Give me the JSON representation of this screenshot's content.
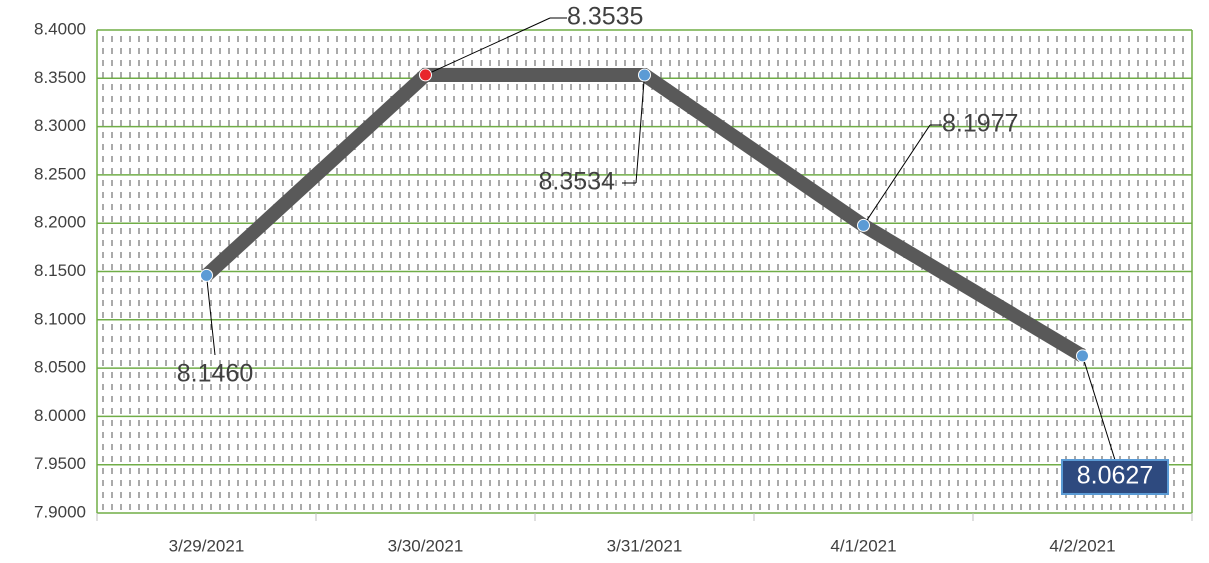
{
  "chart_data": {
    "type": "line",
    "categories": [
      "3/29/2021",
      "3/30/2021",
      "3/31/2021",
      "4/1/2021",
      "4/2/2021"
    ],
    "values": [
      8.146,
      8.3535,
      8.3534,
      8.1977,
      8.0627
    ],
    "value_labels": [
      "8.1460",
      "8.3535",
      "8.3534",
      "8.1977",
      "8.0627"
    ],
    "color": "#595959",
    "marker_colors": [
      "#5b9bd5",
      "#e8262b",
      "#5b9bd5",
      "#5b9bd5",
      "#5b9bd5"
    ],
    "ylim": [
      7.9,
      8.4
    ],
    "yticks": [
      {
        "value": 7.9,
        "label": "7.9000"
      },
      {
        "value": 7.95,
        "label": "7.9500"
      },
      {
        "value": 8.0,
        "label": "8.0000"
      },
      {
        "value": 8.05,
        "label": "8.0500"
      },
      {
        "value": 8.1,
        "label": "8.1000"
      },
      {
        "value": 8.15,
        "label": "8.1500"
      },
      {
        "value": 8.2,
        "label": "8.2000"
      },
      {
        "value": 8.25,
        "label": "8.2500"
      },
      {
        "value": 8.3,
        "label": "8.3000"
      },
      {
        "value": 8.35,
        "label": "8.3500"
      },
      {
        "value": 8.4,
        "label": "8.4000"
      }
    ],
    "grid": true,
    "grid_color": "#70ad47"
  }
}
